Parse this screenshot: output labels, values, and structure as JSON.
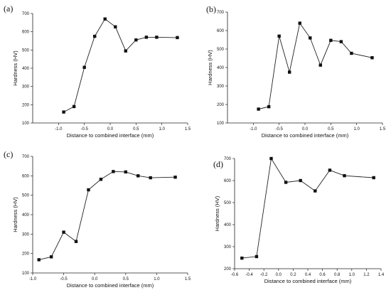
{
  "chart_data": [
    {
      "panel": "(a)",
      "type": "line",
      "xlabel": "Distance to combined interface (mm)",
      "ylabel": "Hardness (HV)",
      "xlim": [
        -1.5,
        1.5
      ],
      "ylim": [
        100,
        700
      ],
      "xticks": [
        -1.0,
        -0.5,
        0.0,
        0.5,
        1.0,
        1.5
      ],
      "xtick_labels": [
        "-1.0",
        "-0.5",
        "0.0",
        "0.5",
        "1.0",
        "1.5"
      ],
      "yticks": [
        100,
        200,
        300,
        400,
        500,
        600,
        700
      ],
      "ytick_labels": [
        "100",
        "200",
        "300",
        "400",
        "500",
        "600",
        "700"
      ],
      "grid": false,
      "series": [
        {
          "x": [
            -0.9,
            -0.7,
            -0.5,
            -0.3,
            -0.1,
            0.1,
            0.3,
            0.5,
            0.7,
            0.9,
            1.3
          ],
          "y": [
            160,
            190,
            405,
            575,
            670,
            627,
            495,
            555,
            570,
            570,
            568
          ]
        }
      ]
    },
    {
      "panel": "(b)",
      "type": "line",
      "xlabel": "Distance to combined interface (mm)",
      "ylabel": "Hardness (HV)",
      "xlim": [
        -1.5,
        1.5
      ],
      "ylim": [
        100,
        700
      ],
      "xticks": [
        -1.0,
        -0.5,
        0.0,
        0.5,
        1.0,
        1.5
      ],
      "xtick_labels": [
        "-1.0",
        "-0.5",
        "0.0",
        "0.5",
        "1.0",
        "1.5"
      ],
      "yticks": [
        100,
        200,
        300,
        400,
        500,
        600,
        700
      ],
      "ytick_labels": [
        "100",
        "200",
        "300",
        "400",
        "500",
        "600",
        "700"
      ],
      "grid": false,
      "series": [
        {
          "x": [
            -0.9,
            -0.7,
            -0.5,
            -0.3,
            -0.1,
            0.1,
            0.3,
            0.5,
            0.7,
            0.9,
            1.3
          ],
          "y": [
            175,
            188,
            570,
            375,
            640,
            560,
            413,
            547,
            540,
            477,
            453
          ]
        }
      ]
    },
    {
      "panel": "(c)",
      "type": "line",
      "xlabel": "Distance to combined interface (mm)",
      "ylabel": "Hardness (HV)",
      "xlim": [
        -1.0,
        1.5
      ],
      "ylim": [
        100,
        700
      ],
      "xticks": [
        -1.0,
        -0.5,
        0.0,
        0.5,
        1.0,
        1.5
      ],
      "xtick_labels": [
        "-1.0",
        "-0.5",
        "0.0",
        "0.5",
        "1.0",
        "1.5"
      ],
      "yticks": [
        100,
        200,
        300,
        400,
        500,
        600,
        700
      ],
      "ytick_labels": [
        "100",
        "200",
        "300",
        "400",
        "500",
        "600",
        "700"
      ],
      "grid": false,
      "series": [
        {
          "x": [
            -0.9,
            -0.7,
            -0.5,
            -0.3,
            -0.1,
            0.1,
            0.3,
            0.5,
            0.7,
            0.9,
            1.3
          ],
          "y": [
            168,
            183,
            310,
            262,
            528,
            582,
            622,
            620,
            600,
            590,
            593
          ]
        }
      ]
    },
    {
      "panel": "(d)",
      "type": "line",
      "xlabel": "Distance to combined interface (mm)",
      "ylabel": "Hardness (HV)",
      "xlim": [
        -0.6,
        1.4
      ],
      "ylim": [
        200,
        700
      ],
      "xticks": [
        -0.6,
        -0.4,
        -0.2,
        0.0,
        0.2,
        0.4,
        0.6,
        0.8,
        1.0,
        1.2,
        1.4
      ],
      "xtick_labels": [
        "-0.6",
        "-0.4",
        "-0.2",
        "0.0",
        "0.2",
        "0.4",
        "0.6",
        "0.8",
        "1.0",
        "1.2",
        "1.4"
      ],
      "yticks": [
        200,
        300,
        400,
        500,
        600,
        700
      ],
      "ytick_labels": [
        "200",
        "300",
        "400",
        "500",
        "600",
        "700"
      ],
      "grid": false,
      "series": [
        {
          "x": [
            -0.5,
            -0.3,
            -0.1,
            0.1,
            0.3,
            0.5,
            0.7,
            0.9,
            1.3
          ],
          "y": [
            248,
            255,
            700,
            592,
            600,
            553,
            647,
            622,
            613
          ]
        }
      ]
    }
  ]
}
